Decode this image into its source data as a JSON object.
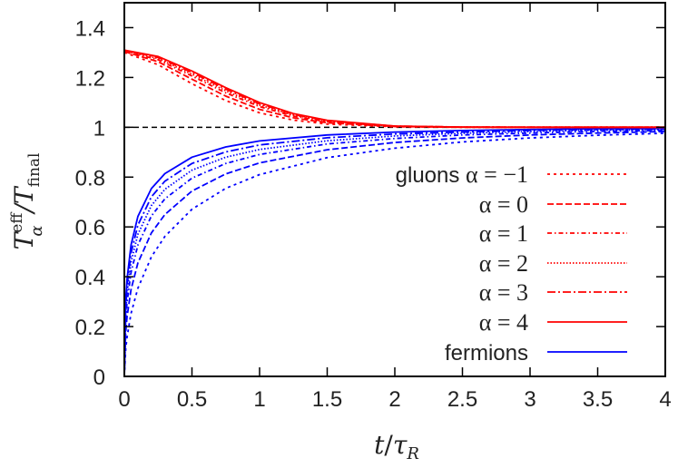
{
  "chart_data": {
    "type": "line",
    "xlabel": {
      "main": "t",
      "slash": "/",
      "tau": "τ",
      "sub": "R"
    },
    "ylabel": {
      "t1": "T",
      "sup": "eff",
      "sub1": "α",
      "slash": "/T",
      "sub2": "final"
    },
    "xlim": [
      0,
      4
    ],
    "ylim": [
      0,
      1.5
    ],
    "xticks": [
      "0",
      "0.5",
      "1",
      "1.5",
      "2",
      "2.5",
      "3",
      "3.5",
      "4"
    ],
    "xtick_values": [
      0,
      0.5,
      1,
      1.5,
      2,
      2.5,
      3,
      3.5,
      4
    ],
    "yticks": [
      "0",
      "0.2",
      "0.4",
      "0.6",
      "0.8",
      "1",
      "1.2",
      "1.4"
    ],
    "ytick_values": [
      0,
      0.2,
      0.4,
      0.6,
      0.8,
      1,
      1.2,
      1.4
    ],
    "grid": false,
    "legend_position": "right-middle",
    "reference_line": {
      "y": 1,
      "color": "#000000",
      "style": "dashed"
    },
    "colors": {
      "gluons": "#ff0000",
      "fermions": "#0000ff"
    },
    "legend": [
      {
        "prefix": "gluons",
        "label": "α = −1",
        "color": "#ff0000",
        "style": "short-dash"
      },
      {
        "prefix": "",
        "label": "α = 0",
        "color": "#ff0000",
        "style": "dash"
      },
      {
        "prefix": "",
        "label": "α = 1",
        "color": "#ff0000",
        "style": "dash-dot"
      },
      {
        "prefix": "",
        "label": "α = 2",
        "color": "#ff0000",
        "style": "dotted"
      },
      {
        "prefix": "",
        "label": "α = 3",
        "color": "#ff0000",
        "style": "long-dash-dot"
      },
      {
        "prefix": "",
        "label": "α = 4",
        "color": "#ff0000",
        "style": "solid"
      },
      {
        "prefix": "fermions",
        "label": "",
        "color": "#0000ff",
        "style": "solid"
      }
    ],
    "gluons": {
      "x": [
        0,
        0.25,
        0.5,
        0.75,
        1,
        1.25,
        1.5,
        2,
        2.5,
        3,
        3.5,
        4
      ],
      "series": [
        {
          "alpha": -1,
          "style": "short-dash",
          "values": [
            1.3,
            1.251,
            1.175,
            1.107,
            1.058,
            1.029,
            1.013,
            1.002,
            1.0,
            1,
            1,
            1
          ]
        },
        {
          "alpha": 0,
          "style": "dash",
          "values": [
            1.304,
            1.263,
            1.193,
            1.125,
            1.072,
            1.038,
            1.018,
            1.003,
            1.0,
            1,
            1,
            1
          ]
        },
        {
          "alpha": 1,
          "style": "dash-dot",
          "values": [
            1.306,
            1.271,
            1.206,
            1.138,
            1.083,
            1.045,
            1.022,
            1.004,
            1.001,
            1,
            1,
            1
          ]
        },
        {
          "alpha": 2,
          "style": "dotted",
          "values": [
            1.308,
            1.276,
            1.213,
            1.146,
            1.089,
            1.049,
            1.024,
            1.004,
            1.001,
            1,
            1,
            1
          ]
        },
        {
          "alpha": 3,
          "style": "long-dash-dot",
          "values": [
            1.309,
            1.28,
            1.22,
            1.153,
            1.094,
            1.052,
            1.026,
            1.005,
            1.001,
            1,
            1,
            1
          ]
        },
        {
          "alpha": 4,
          "style": "solid",
          "values": [
            1.31,
            1.284,
            1.226,
            1.159,
            1.099,
            1.055,
            1.028,
            1.005,
            1.001,
            1,
            1,
            1
          ]
        }
      ]
    },
    "fermions": {
      "x": [
        0,
        0.01,
        0.02,
        0.05,
        0.1,
        0.2,
        0.3,
        0.5,
        0.75,
        1,
        1.5,
        2,
        2.5,
        3,
        3.5,
        4
      ],
      "series": [
        {
          "alpha": -1,
          "style": "short-dash",
          "values": [
            0,
            0.109,
            0.158,
            0.253,
            0.354,
            0.48,
            0.562,
            0.671,
            0.755,
            0.81,
            0.878,
            0.916,
            0.941,
            0.957,
            0.968,
            0.976
          ]
        },
        {
          "alpha": 0,
          "style": "dash",
          "values": [
            0,
            0.178,
            0.24,
            0.349,
            0.455,
            0.576,
            0.65,
            0.744,
            0.813,
            0.857,
            0.91,
            0.939,
            0.957,
            0.969,
            0.977,
            0.983
          ]
        },
        {
          "alpha": 1,
          "style": "dash-dot",
          "values": [
            0,
            0.227,
            0.298,
            0.418,
            0.527,
            0.644,
            0.713,
            0.796,
            0.855,
            0.891,
            0.933,
            0.955,
            0.969,
            0.977,
            0.984,
            0.987
          ]
        },
        {
          "alpha": 2,
          "style": "dotted",
          "values": [
            0,
            0.256,
            0.334,
            0.459,
            0.57,
            0.686,
            0.751,
            0.828,
            0.88,
            0.911,
            0.946,
            0.965,
            0.976,
            0.983,
            0.988,
            0.99
          ]
        },
        {
          "alpha": 3,
          "style": "long-dash-dot",
          "values": [
            0,
            0.281,
            0.364,
            0.495,
            0.607,
            0.721,
            0.784,
            0.855,
            0.901,
            0.929,
            0.958,
            0.973,
            0.981,
            0.987,
            0.991,
            0.993
          ]
        },
        {
          "alpha": 4,
          "style": "solid",
          "values": [
            0,
            0.305,
            0.392,
            0.528,
            0.642,
            0.754,
            0.814,
            0.88,
            0.921,
            0.945,
            0.969,
            0.981,
            0.987,
            0.991,
            0.994,
            0.995
          ]
        }
      ]
    }
  }
}
